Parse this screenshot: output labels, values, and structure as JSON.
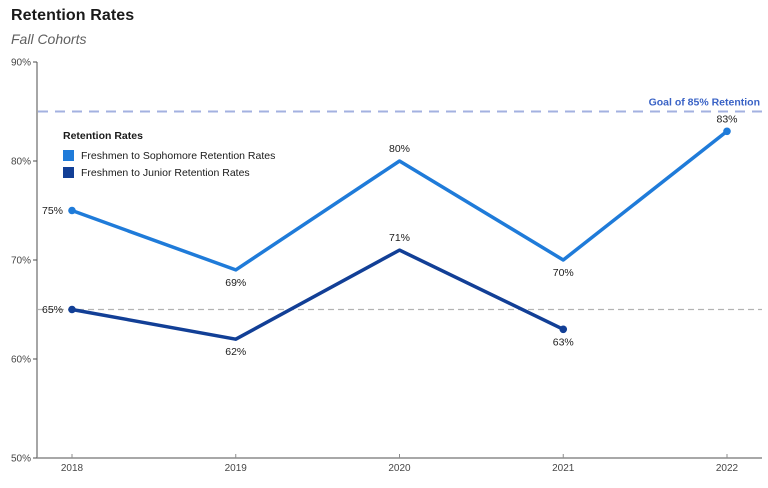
{
  "page": {
    "title": "Retention Rates",
    "subtitle": "Fall Cohorts"
  },
  "legend": {
    "title": "Retention Rates",
    "items": [
      {
        "label": "Freshmen to Sophomore Retention Rates",
        "color": "#1f7bd9"
      },
      {
        "label": "Freshmen to Junior Retention Rates",
        "color": "#123f96"
      }
    ]
  },
  "chart_data": {
    "type": "line",
    "title": "Retention Rates",
    "subtitle": "Fall Cohorts",
    "x": [
      "2018",
      "2019",
      "2020",
      "2021",
      "2022"
    ],
    "series": [
      {
        "name": "Freshmen to Sophomore Retention Rates",
        "color": "#1f7bd9",
        "values": [
          75,
          69,
          80,
          70,
          83
        ],
        "point_labels": [
          "75%",
          "69%",
          "80%",
          "70%",
          "83%"
        ],
        "label_positions": [
          "left",
          "below",
          "above",
          "below",
          "above"
        ]
      },
      {
        "name": "Freshmen to Junior Retention Rates",
        "color": "#123f96",
        "values": [
          65,
          62,
          71,
          63,
          null
        ],
        "point_labels": [
          "65%",
          "62%",
          "71%",
          "63%",
          null
        ],
        "label_positions": [
          "left",
          "below",
          "above",
          "below",
          null
        ]
      }
    ],
    "ylim": [
      50,
      90
    ],
    "yticks": [
      50,
      60,
      70,
      80,
      90
    ],
    "ytick_labels": [
      "50%",
      "60%",
      "70%",
      "80%",
      "90%"
    ],
    "xlabel": "",
    "ylabel": "",
    "grid": false,
    "legend_position": "inside-top-left",
    "reference_lines": [
      {
        "value": 85,
        "label": "Goal of 85% Retention",
        "line_color": "#a3b1e0",
        "label_color": "#3a63c6",
        "width": 2,
        "dash": "10 7"
      },
      {
        "value": 65,
        "label": "",
        "line_color": "#b3b3b3",
        "label_color": "#b3b3b3",
        "width": 1.2,
        "dash": "6 4"
      }
    ],
    "colors": {
      "axis_y": "#4d4d4d",
      "axis_x": "#8c8c8c",
      "tick_label": "#474747",
      "data_label": "#1c1c1c"
    }
  }
}
